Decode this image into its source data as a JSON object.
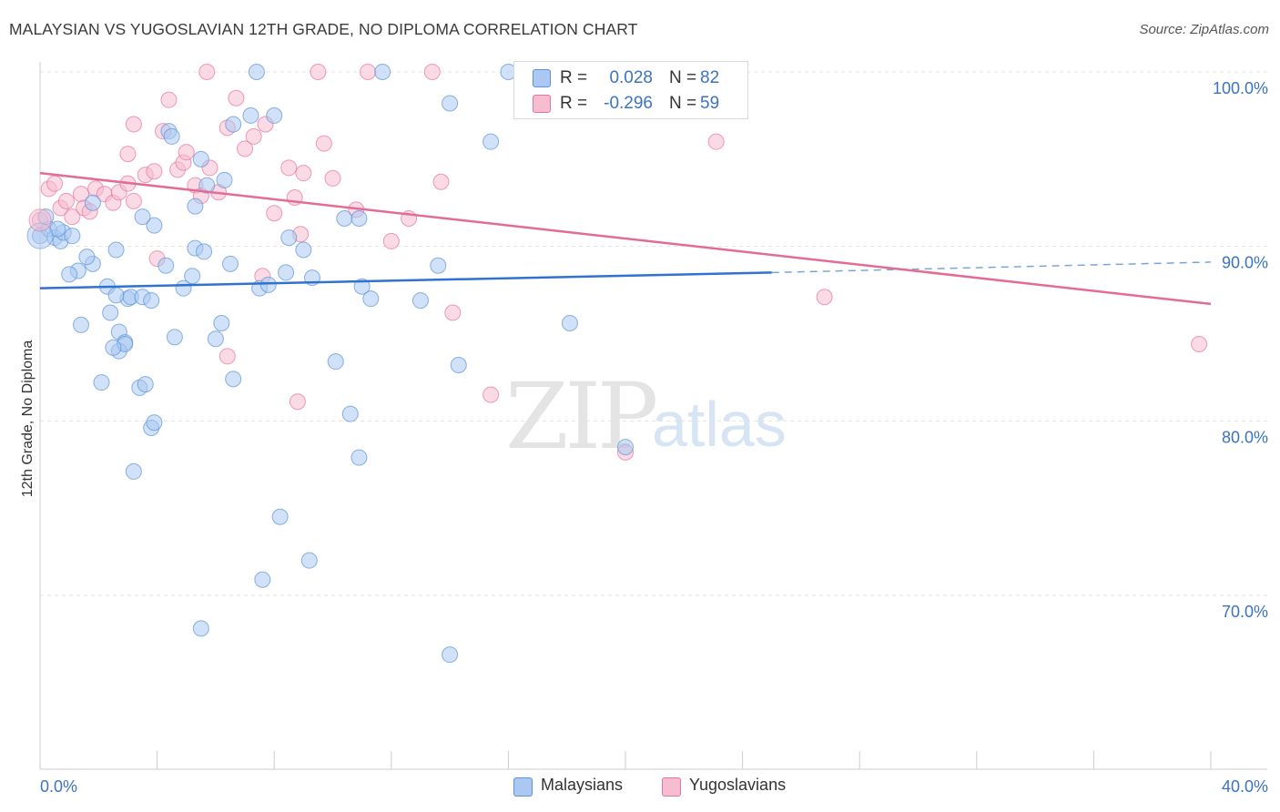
{
  "title": "MALAYSIAN VS YUGOSLAVIAN 12TH GRADE, NO DIPLOMA CORRELATION CHART",
  "source": "Source: ZipAtlas.com",
  "watermark": {
    "zip": "ZIP",
    "atlas": "atlas"
  },
  "stats": [
    {
      "r_label": "R =",
      "r_value": "0.028",
      "n_label": "N =",
      "n_value": "82",
      "color": "#aac8f2"
    },
    {
      "r_label": "R =",
      "r_value": "-0.296",
      "n_label": "N =",
      "n_value": "59",
      "color": "#f6bcd0"
    }
  ],
  "legend": [
    {
      "label": "Malaysians",
      "color": "#aac8f2"
    },
    {
      "label": "Yugoslavians",
      "color": "#f6bcd0"
    }
  ],
  "chart_data": {
    "type": "scatter",
    "xlabel": "",
    "ylabel": "12th Grade, No Diploma",
    "xlim": [
      0,
      40
    ],
    "ylim": [
      60,
      100
    ],
    "x_tick_labels": [
      "0.0%",
      "40.0%"
    ],
    "y_tick_labels": [
      "100.0%",
      "90.0%",
      "80.0%",
      "70.0%"
    ],
    "y_ticks": [
      100,
      90,
      80,
      70
    ],
    "grid": true,
    "series": [
      {
        "name": "Malaysians",
        "color": "#5b93d6",
        "fill": "#aac8f2",
        "trend": {
          "x0": 0,
          "y0": 87.6,
          "x1": 25,
          "y1": 88.5,
          "dash_to": 40,
          "dash_y": 89.1
        },
        "points": [
          [
            0.0,
            90.6
          ],
          [
            0.3,
            91.0
          ],
          [
            0.5,
            90.5
          ],
          [
            0.7,
            90.3
          ],
          [
            0.8,
            90.8
          ],
          [
            1.1,
            90.6
          ],
          [
            1.3,
            88.6
          ],
          [
            1.0,
            88.4
          ],
          [
            1.4,
            85.5
          ],
          [
            1.8,
            89.0
          ],
          [
            1.6,
            89.4
          ],
          [
            1.8,
            92.5
          ],
          [
            2.3,
            87.7
          ],
          [
            2.4,
            86.2
          ],
          [
            2.6,
            89.8
          ],
          [
            2.7,
            85.1
          ],
          [
            2.1,
            82.2
          ],
          [
            2.9,
            84.5
          ],
          [
            2.7,
            84.0
          ],
          [
            2.9,
            84.4
          ],
          [
            3.0,
            87.0
          ],
          [
            2.5,
            84.2
          ],
          [
            2.6,
            87.2
          ],
          [
            3.1,
            87.1
          ],
          [
            3.5,
            87.1
          ],
          [
            3.8,
            86.9
          ],
          [
            3.9,
            91.2
          ],
          [
            3.5,
            91.7
          ],
          [
            3.4,
            81.9
          ],
          [
            3.6,
            82.1
          ],
          [
            3.8,
            79.6
          ],
          [
            3.9,
            79.9
          ],
          [
            3.2,
            77.1
          ],
          [
            4.3,
            88.9
          ],
          [
            4.6,
            84.8
          ],
          [
            4.4,
            96.6
          ],
          [
            4.5,
            96.3
          ],
          [
            4.9,
            87.6
          ],
          [
            5.2,
            88.3
          ],
          [
            5.3,
            92.3
          ],
          [
            5.3,
            89.9
          ],
          [
            5.6,
            89.7
          ],
          [
            5.5,
            95.0
          ],
          [
            5.7,
            93.5
          ],
          [
            6.0,
            84.7
          ],
          [
            6.2,
            85.6
          ],
          [
            6.5,
            89.0
          ],
          [
            6.6,
            82.4
          ],
          [
            6.3,
            93.8
          ],
          [
            6.6,
            97.0
          ],
          [
            7.2,
            97.5
          ],
          [
            7.4,
            100.0
          ],
          [
            7.5,
            87.6
          ],
          [
            7.8,
            87.8
          ],
          [
            8.0,
            97.5
          ],
          [
            8.4,
            88.5
          ],
          [
            8.5,
            90.5
          ],
          [
            9.0,
            89.8
          ],
          [
            9.3,
            88.2
          ],
          [
            9.2,
            72.0
          ],
          [
            8.2,
            74.5
          ],
          [
            7.6,
            70.9
          ],
          [
            5.5,
            68.1
          ],
          [
            10.1,
            83.4
          ],
          [
            10.4,
            91.6
          ],
          [
            10.9,
            91.6
          ],
          [
            10.6,
            80.4
          ],
          [
            11.0,
            87.7
          ],
          [
            11.3,
            87.0
          ],
          [
            10.9,
            77.9
          ],
          [
            11.7,
            100.0
          ],
          [
            13.0,
            86.9
          ],
          [
            13.6,
            88.9
          ],
          [
            14.0,
            98.2
          ],
          [
            14.3,
            83.2
          ],
          [
            15.4,
            96.0
          ],
          [
            16.0,
            100.0
          ],
          [
            18.1,
            85.6
          ],
          [
            20.0,
            78.5
          ],
          [
            14.0,
            66.6
          ],
          [
            0.2,
            91.7
          ],
          [
            0.6,
            91.0
          ]
        ]
      },
      {
        "name": "Yugoslavians",
        "color": "#e8739a",
        "fill": "#f6bcd0",
        "trend": {
          "x0": 0,
          "y0": 94.2,
          "x1": 40,
          "y1": 86.7
        },
        "points": [
          [
            0.0,
            91.5
          ],
          [
            0.3,
            93.3
          ],
          [
            0.5,
            93.6
          ],
          [
            0.7,
            92.2
          ],
          [
            0.9,
            92.6
          ],
          [
            1.1,
            91.7
          ],
          [
            1.4,
            93.0
          ],
          [
            1.5,
            92.2
          ],
          [
            1.7,
            92.0
          ],
          [
            1.9,
            93.3
          ],
          [
            2.2,
            93.0
          ],
          [
            2.5,
            92.5
          ],
          [
            2.7,
            93.1
          ],
          [
            3.0,
            93.6
          ],
          [
            3.2,
            92.6
          ],
          [
            3.0,
            95.3
          ],
          [
            3.2,
            97.0
          ],
          [
            3.6,
            94.1
          ],
          [
            3.9,
            94.3
          ],
          [
            4.0,
            89.3
          ],
          [
            4.2,
            96.6
          ],
          [
            4.4,
            98.4
          ],
          [
            4.7,
            94.4
          ],
          [
            4.9,
            94.8
          ],
          [
            5.0,
            95.4
          ],
          [
            5.3,
            93.5
          ],
          [
            5.5,
            92.9
          ],
          [
            5.8,
            94.5
          ],
          [
            5.7,
            100.0
          ],
          [
            6.1,
            93.1
          ],
          [
            6.4,
            83.7
          ],
          [
            6.4,
            96.8
          ],
          [
            6.7,
            98.5
          ],
          [
            7.0,
            95.6
          ],
          [
            7.3,
            96.3
          ],
          [
            7.7,
            97.0
          ],
          [
            7.6,
            88.3
          ],
          [
            8.0,
            91.9
          ],
          [
            8.5,
            94.5
          ],
          [
            8.7,
            92.8
          ],
          [
            8.9,
            90.7
          ],
          [
            8.8,
            81.1
          ],
          [
            9.0,
            94.2
          ],
          [
            9.7,
            95.9
          ],
          [
            10.0,
            93.9
          ],
          [
            10.8,
            92.1
          ],
          [
            9.5,
            100.0
          ],
          [
            11.2,
            100.0
          ],
          [
            12.0,
            90.3
          ],
          [
            12.6,
            91.6
          ],
          [
            13.4,
            100.0
          ],
          [
            13.7,
            93.7
          ],
          [
            14.1,
            86.2
          ],
          [
            15.4,
            81.5
          ],
          [
            17.6,
            100.0
          ],
          [
            20.0,
            78.2
          ],
          [
            23.1,
            96.0
          ],
          [
            26.8,
            87.1
          ],
          [
            39.6,
            84.4
          ]
        ]
      }
    ]
  }
}
